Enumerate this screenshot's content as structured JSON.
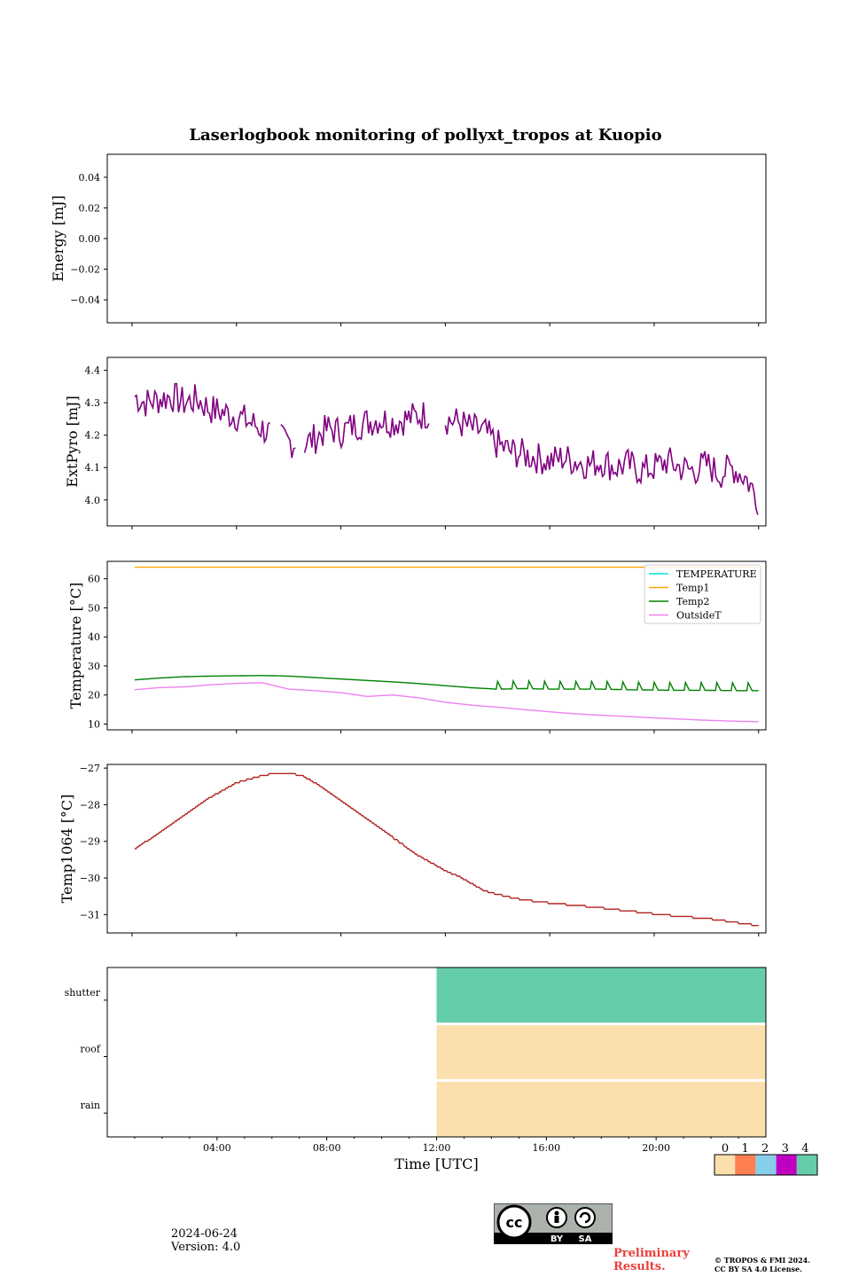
{
  "chart_data": [
    {
      "type": "line",
      "panel": "energy",
      "title": "Laserlogbook monitoring of pollyxt_tropos at Kuopio",
      "ylabel": "Energy [mJ]",
      "ylim": [
        -0.055,
        0.055
      ],
      "yticks": [
        0.04,
        0.02,
        0.0,
        -0.02,
        -0.04
      ],
      "ytick_labels": [
        "0.04",
        "0.02",
        "0.00",
        "−0.02",
        "−0.04"
      ],
      "series": []
    },
    {
      "type": "line",
      "panel": "extpyro",
      "ylabel": "ExtPyro [mJ]",
      "ylim": [
        3.92,
        4.44
      ],
      "yticks": [
        4.4,
        4.3,
        4.2,
        4.1,
        4.0
      ],
      "ytick_labels": [
        "4.4",
        "4.3",
        "4.2",
        "4.1",
        "4.0"
      ],
      "series": [
        {
          "color": "#800080",
          "x_hours": [
            0.1,
            0.5,
            1.0,
            1.5,
            2.0,
            2.5,
            3.0,
            3.5,
            4.0,
            4.5,
            5.0,
            5.5,
            6.0,
            6.5,
            7.0,
            7.5,
            8.0,
            8.5,
            9.0,
            9.5,
            10.0,
            10.5,
            11.0,
            11.5,
            12.0,
            12.5,
            13.0,
            13.5,
            14.0,
            14.5,
            15.0,
            15.5,
            16.0,
            16.5,
            17.0,
            17.5,
            18.0,
            18.5,
            19.0,
            19.5,
            20.0,
            20.5,
            21.0,
            21.5,
            22.0,
            22.5,
            23.0,
            23.5,
            24.0
          ],
          "y": [
            4.32,
            4.3,
            4.31,
            4.32,
            4.3,
            4.31,
            4.28,
            4.27,
            4.26,
            4.24,
            4.22,
            4.19,
            4.18,
            4.17,
            4.19,
            4.22,
            4.21,
            4.23,
            4.24,
            4.25,
            4.24,
            4.25,
            4.26,
            4.27,
            4.25,
            4.24,
            4.22,
            4.21,
            4.17,
            4.15,
            4.14,
            4.13,
            4.12,
            4.13,
            4.12,
            4.11,
            4.12,
            4.1,
            4.11,
            4.09,
            4.1,
            4.12,
            4.1,
            4.09,
            4.11,
            4.08,
            4.1,
            4.07,
            4.0
          ],
          "noise": 0.05,
          "gaps": [
            [
              5.3,
              5.7
            ],
            [
              6.3,
              6.6
            ],
            [
              11.4,
              12.0
            ]
          ]
        }
      ]
    },
    {
      "type": "line",
      "panel": "temperature",
      "ylabel": "Temperature [°C]",
      "ylim": [
        8,
        66
      ],
      "yticks": [
        60,
        50,
        40,
        30,
        20,
        10
      ],
      "ytick_labels": [
        "60",
        "50",
        "40",
        "30",
        "20",
        "10"
      ],
      "legend": {
        "position": "top-right",
        "entries": [
          "TEMPERATURE",
          "Temp1",
          "Temp2",
          "OutsideT"
        ]
      },
      "series": [
        {
          "name": "TEMPERATURE",
          "color": "#00e5e5",
          "x_hours": [],
          "y": []
        },
        {
          "name": "Temp1",
          "color": "#ffa500",
          "x_hours": [
            0.1,
            24.0
          ],
          "y": [
            64,
            64
          ]
        },
        {
          "name": "Temp2",
          "color": "#008000",
          "x_hours": [
            0.1,
            1.0,
            2.0,
            3.0,
            4.0,
            5.0,
            6.0,
            7.0,
            8.0,
            9.0,
            10.0,
            11.0,
            12.0,
            13.0,
            14.0,
            15.0,
            16.0,
            17.0,
            18.0,
            19.0,
            20.0,
            21.0,
            22.0,
            23.0,
            24.0
          ],
          "y": [
            25.2,
            25.8,
            26.3,
            26.5,
            26.6,
            26.7,
            26.5,
            26.0,
            25.5,
            25.0,
            24.5,
            23.9,
            23.2,
            22.5,
            22.0,
            22.2,
            22.0,
            22.0,
            22.0,
            21.8,
            21.7,
            21.6,
            21.6,
            21.5,
            21.5
          ],
          "oscillate_after_hour": 14.0,
          "osc_amplitude": 3.0
        },
        {
          "name": "OutsideT",
          "color": "#ee82ee",
          "x_hours": [
            0.1,
            1.0,
            2.0,
            3.0,
            4.0,
            5.0,
            6.0,
            7.0,
            8.0,
            9.0,
            10.0,
            11.0,
            12.0,
            13.0,
            14.0,
            15.0,
            16.0,
            17.0,
            18.0,
            19.0,
            20.0,
            21.0,
            22.0,
            23.0,
            24.0
          ],
          "y": [
            21.8,
            22.5,
            22.8,
            23.5,
            24.0,
            24.2,
            22.0,
            21.5,
            20.8,
            19.5,
            20.0,
            19.0,
            17.5,
            16.5,
            15.8,
            15.0,
            14.2,
            13.5,
            13.0,
            12.6,
            12.1,
            11.7,
            11.3,
            11.0,
            10.8
          ]
        }
      ]
    },
    {
      "type": "line",
      "panel": "temp1064",
      "ylabel": "Temp1064 [°C]",
      "ylim": [
        -31.5,
        -26.9
      ],
      "yticks": [
        -27,
        -28,
        -29,
        -30,
        -31
      ],
      "ytick_labels": [
        "−27",
        "−28",
        "−29",
        "−30",
        "−31"
      ],
      "series": [
        {
          "color": "#b22222",
          "x_hours": [
            0.1,
            1.0,
            2.0,
            3.0,
            4.0,
            5.0,
            5.5,
            6.0,
            6.5,
            7.0,
            8.0,
            9.0,
            10.0,
            11.0,
            12.0,
            12.5,
            13.0,
            13.5,
            14.0,
            15.0,
            16.0,
            17.0,
            18.0,
            19.0,
            20.0,
            21.0,
            22.0,
            23.0,
            24.0
          ],
          "y": [
            -29.2,
            -28.8,
            -28.3,
            -27.8,
            -27.4,
            -27.2,
            -27.15,
            -27.15,
            -27.2,
            -27.4,
            -27.9,
            -28.4,
            -28.9,
            -29.4,
            -29.8,
            -29.95,
            -30.15,
            -30.35,
            -30.45,
            -30.6,
            -30.68,
            -30.75,
            -30.82,
            -30.9,
            -30.98,
            -31.05,
            -31.1,
            -31.2,
            -31.3
          ]
        }
      ]
    },
    {
      "type": "heatmap",
      "panel": "status",
      "rows": [
        "shutter",
        "roof",
        "rain"
      ],
      "colorbar": {
        "ticks": [
          "0",
          "1",
          "2",
          "3",
          "4"
        ],
        "colors": [
          "#fcdfae",
          "#ff7f50",
          "#87ceeb",
          "#c000c0",
          "#66cdaa"
        ]
      },
      "cells": [
        {
          "row": "shutter",
          "start_hour": 12.0,
          "end_hour": 24.0,
          "value": 4
        },
        {
          "row": "roof",
          "start_hour": 12.0,
          "end_hour": 24.0,
          "value": 0
        },
        {
          "row": "rain",
          "start_hour": 12.0,
          "end_hour": 24.0,
          "value": 0
        }
      ],
      "xlabel": "Time [UTC]",
      "xlim_hours": [
        0,
        24
      ],
      "xticks": [
        "04:00",
        "08:00",
        "12:00",
        "16:00",
        "20:00"
      ]
    }
  ],
  "footer": {
    "date": "2024-06-24",
    "version": "Version: 4.0",
    "preliminary": "Preliminary Results.",
    "copyright_line1": "© TROPOS & FMI 2024.",
    "copyright_line2": "CC BY SA 4.0 License.",
    "license_badge": {
      "by": "BY",
      "sa": "SA"
    }
  }
}
